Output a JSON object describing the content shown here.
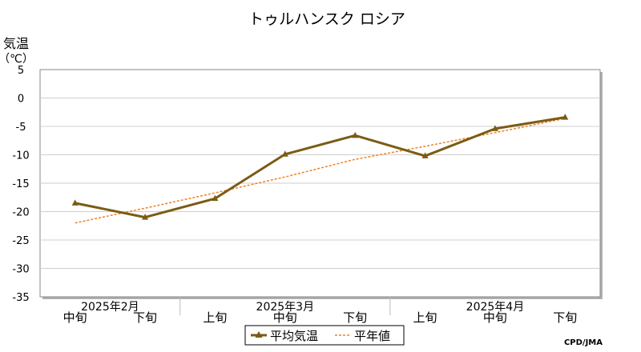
{
  "chart_data": {
    "type": "line",
    "title": "トゥルハンスク ロシア",
    "ylabel": "気温",
    "yunit": "（℃）",
    "ylim": [
      -35,
      5
    ],
    "yticks": [
      5,
      0,
      -5,
      -10,
      -15,
      -20,
      -25,
      -30,
      -35
    ],
    "categories": [
      "2月中旬",
      "2月下旬",
      "3月上旬",
      "3月中旬",
      "3月下旬",
      "4月上旬",
      "4月中旬",
      "4月下旬"
    ],
    "dekad_labels": [
      "中旬",
      "下旬",
      "上旬",
      "中旬",
      "下旬",
      "上旬",
      "中旬",
      "下旬"
    ],
    "month_labels": [
      {
        "text": "2025年2月",
        "index": 0
      },
      {
        "text": "2025年3月",
        "index": 3
      },
      {
        "text": "2025年4月",
        "index": 6
      }
    ],
    "series": [
      {
        "name": "平均気温",
        "values": [
          -18.5,
          -21.0,
          -17.7,
          -9.9,
          -6.6,
          -10.2,
          -5.4,
          -3.4
        ],
        "color": "#7a5c14",
        "style": "solid-triangle"
      },
      {
        "name": "平年値",
        "values": [
          -22.0,
          -19.4,
          -16.7,
          -13.9,
          -10.8,
          -8.5,
          -6.1,
          -3.6
        ],
        "color": "#f08020",
        "style": "dotted"
      }
    ],
    "grid": true,
    "legend_position": "bottom-center",
    "credit": "CPD/JMA"
  }
}
